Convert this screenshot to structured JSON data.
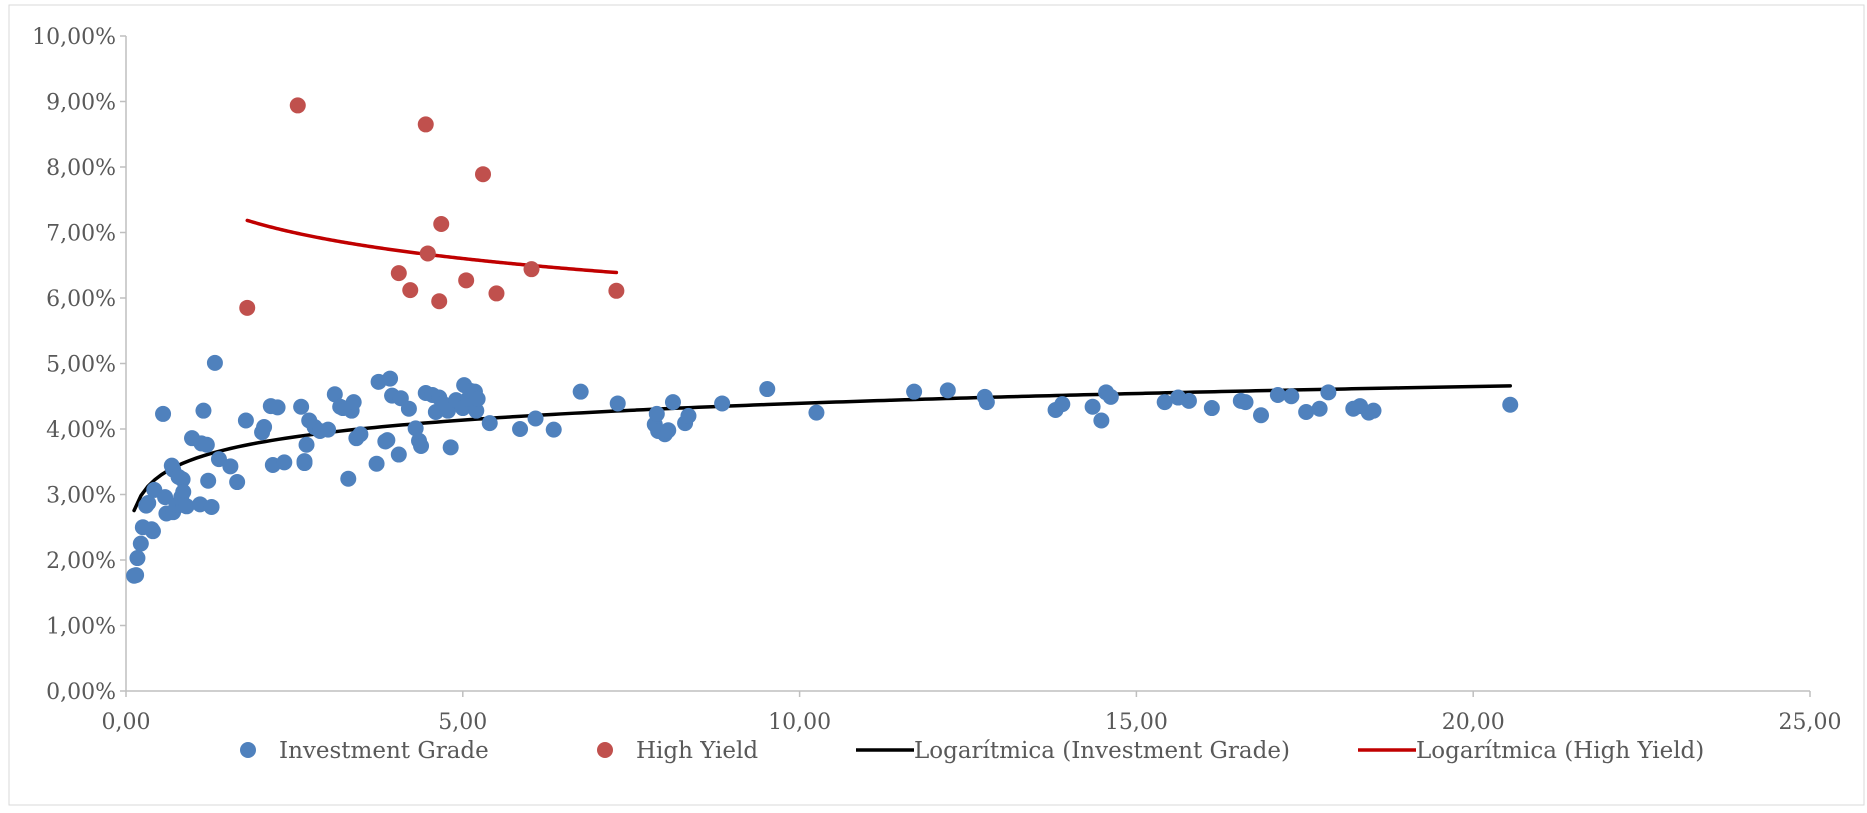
{
  "chart_data": {
    "type": "scatter",
    "title": "",
    "xlabel": "",
    "ylabel": "",
    "xlim": [
      0,
      25
    ],
    "ylim": [
      0,
      0.1
    ],
    "x_ticks": [
      "0,00",
      "5,00",
      "10,00",
      "15,00",
      "20,00",
      "25,00"
    ],
    "y_ticks": [
      "0,00%",
      "1,00%",
      "2,00%",
      "3,00%",
      "4,00%",
      "5,00%",
      "6,00%",
      "7,00%",
      "8,00%",
      "9,00%",
      "10,00%"
    ],
    "grid": false,
    "legend_position": "bottom",
    "colors": {
      "investment_grade": "#4F81BD",
      "high_yield": "#C0504D",
      "trend_ig": "#000000",
      "trend_hy": "#C00000",
      "axis": "#BFBFBF",
      "text": "#595959"
    },
    "legend": [
      {
        "label": "Investment Grade",
        "kind": "marker",
        "color": "#4F81BD"
      },
      {
        "label": "High Yield",
        "kind": "marker",
        "color": "#C0504D"
      },
      {
        "label": "Logarítmica (Investment Grade)",
        "kind": "line",
        "color": "#000000"
      },
      {
        "label": "Logarítmica (High Yield)",
        "kind": "line",
        "color": "#C00000"
      }
    ],
    "series": [
      {
        "name": "Investment Grade",
        "color": "#4F81BD",
        "points": [
          [
            0.12,
            0.0176
          ],
          [
            0.15,
            0.0177
          ],
          [
            0.17,
            0.0203
          ],
          [
            0.22,
            0.0225
          ],
          [
            0.25,
            0.025
          ],
          [
            0.3,
            0.0283
          ],
          [
            0.33,
            0.0287
          ],
          [
            0.38,
            0.0247
          ],
          [
            0.4,
            0.0244
          ],
          [
            0.42,
            0.0307
          ],
          [
            0.55,
            0.0423
          ],
          [
            0.58,
            0.0296
          ],
          [
            0.6,
            0.0271
          ],
          [
            0.68,
            0.0344
          ],
          [
            0.7,
            0.0338
          ],
          [
            0.7,
            0.0273
          ],
          [
            0.75,
            0.0284
          ],
          [
            0.78,
            0.0327
          ],
          [
            0.82,
            0.0296
          ],
          [
            0.84,
            0.0323
          ],
          [
            0.85,
            0.0304
          ],
          [
            0.85,
            0.0284
          ],
          [
            0.9,
            0.0282
          ],
          [
            0.98,
            0.0386
          ],
          [
            1.1,
            0.0285
          ],
          [
            1.12,
            0.0378
          ],
          [
            1.15,
            0.0428
          ],
          [
            1.2,
            0.0376
          ],
          [
            1.22,
            0.0321
          ],
          [
            1.27,
            0.0281
          ],
          [
            1.32,
            0.0501
          ],
          [
            1.38,
            0.0354
          ],
          [
            1.55,
            0.0343
          ],
          [
            1.65,
            0.0319
          ],
          [
            1.78,
            0.0413
          ],
          [
            2.02,
            0.0395
          ],
          [
            2.05,
            0.0403
          ],
          [
            2.15,
            0.0435
          ],
          [
            2.18,
            0.0345
          ],
          [
            2.25,
            0.0433
          ],
          [
            2.35,
            0.0349
          ],
          [
            2.6,
            0.0434
          ],
          [
            2.65,
            0.0351
          ],
          [
            2.65,
            0.0348
          ],
          [
            2.68,
            0.0376
          ],
          [
            2.72,
            0.0413
          ],
          [
            2.8,
            0.0403
          ],
          [
            2.88,
            0.0397
          ],
          [
            3.0,
            0.0399
          ],
          [
            3.1,
            0.0453
          ],
          [
            3.18,
            0.0434
          ],
          [
            3.22,
            0.0432
          ],
          [
            3.3,
            0.0324
          ],
          [
            3.35,
            0.0428
          ],
          [
            3.38,
            0.0441
          ],
          [
            3.42,
            0.0386
          ],
          [
            3.48,
            0.0392
          ],
          [
            3.72,
            0.0347
          ],
          [
            3.75,
            0.0472
          ],
          [
            3.85,
            0.0381
          ],
          [
            3.88,
            0.0383
          ],
          [
            3.92,
            0.0477
          ],
          [
            3.95,
            0.0451
          ],
          [
            4.05,
            0.0361
          ],
          [
            4.08,
            0.0447
          ],
          [
            4.2,
            0.0431
          ],
          [
            4.3,
            0.0401
          ],
          [
            4.35,
            0.0382
          ],
          [
            4.38,
            0.0374
          ],
          [
            4.45,
            0.0455
          ],
          [
            4.55,
            0.0452
          ],
          [
            4.6,
            0.0426
          ],
          [
            4.65,
            0.0448
          ],
          [
            4.7,
            0.0439
          ],
          [
            4.78,
            0.0428
          ],
          [
            4.82,
            0.0372
          ],
          [
            4.9,
            0.0444
          ],
          [
            5.0,
            0.0432
          ],
          [
            5.02,
            0.0467
          ],
          [
            5.08,
            0.0446
          ],
          [
            5.12,
            0.0458
          ],
          [
            5.18,
            0.0457
          ],
          [
            5.2,
            0.0428
          ],
          [
            5.22,
            0.0446
          ],
          [
            5.4,
            0.0409
          ],
          [
            5.85,
            0.04
          ],
          [
            6.08,
            0.0416
          ],
          [
            6.35,
            0.0399
          ],
          [
            6.75,
            0.0457
          ],
          [
            7.3,
            0.0439
          ],
          [
            7.85,
            0.0407
          ],
          [
            7.88,
            0.0423
          ],
          [
            7.9,
            0.0397
          ],
          [
            8.0,
            0.0392
          ],
          [
            8.05,
            0.0398
          ],
          [
            8.12,
            0.0441
          ],
          [
            8.3,
            0.0409
          ],
          [
            8.35,
            0.042
          ],
          [
            8.85,
            0.0439
          ],
          [
            9.52,
            0.0461
          ],
          [
            10.25,
            0.0425
          ],
          [
            11.7,
            0.0457
          ],
          [
            12.2,
            0.0459
          ],
          [
            12.75,
            0.0449
          ],
          [
            12.78,
            0.0441
          ],
          [
            13.8,
            0.0429
          ],
          [
            13.9,
            0.0438
          ],
          [
            14.35,
            0.0434
          ],
          [
            14.48,
            0.0413
          ],
          [
            14.55,
            0.0456
          ],
          [
            14.62,
            0.0449
          ],
          [
            15.42,
            0.0441
          ],
          [
            15.62,
            0.0448
          ],
          [
            15.78,
            0.0443
          ],
          [
            16.12,
            0.0432
          ],
          [
            16.55,
            0.0443
          ],
          [
            16.62,
            0.0441
          ],
          [
            16.85,
            0.0421
          ],
          [
            17.1,
            0.0452
          ],
          [
            17.3,
            0.045
          ],
          [
            17.52,
            0.0426
          ],
          [
            17.72,
            0.0431
          ],
          [
            17.85,
            0.0456
          ],
          [
            18.22,
            0.0431
          ],
          [
            18.32,
            0.0435
          ],
          [
            18.45,
            0.0425
          ],
          [
            18.52,
            0.0428
          ],
          [
            20.55,
            0.0437
          ]
        ]
      },
      {
        "name": "High Yield",
        "color": "#C0504D",
        "points": [
          [
            1.8,
            0.0585
          ],
          [
            2.55,
            0.0894
          ],
          [
            4.05,
            0.0638
          ],
          [
            4.22,
            0.0612
          ],
          [
            4.45,
            0.0865
          ],
          [
            4.48,
            0.0668
          ],
          [
            4.65,
            0.0595
          ],
          [
            4.68,
            0.0713
          ],
          [
            5.05,
            0.0627
          ],
          [
            5.3,
            0.0789
          ],
          [
            5.5,
            0.0607
          ],
          [
            6.02,
            0.0644
          ],
          [
            7.28,
            0.0611
          ]
        ]
      }
    ],
    "trendlines": [
      {
        "name": "Logarítmica (Investment Grade)",
        "color": "#000000",
        "x_range": [
          0.12,
          20.55
        ],
        "a": 0.0354,
        "b": 0.0037
      },
      {
        "name": "Logarítmica (High Yield)",
        "color": "#C00000",
        "x_range": [
          1.8,
          7.28
        ],
        "a": 0.0752,
        "b": -0.0057
      }
    ]
  }
}
